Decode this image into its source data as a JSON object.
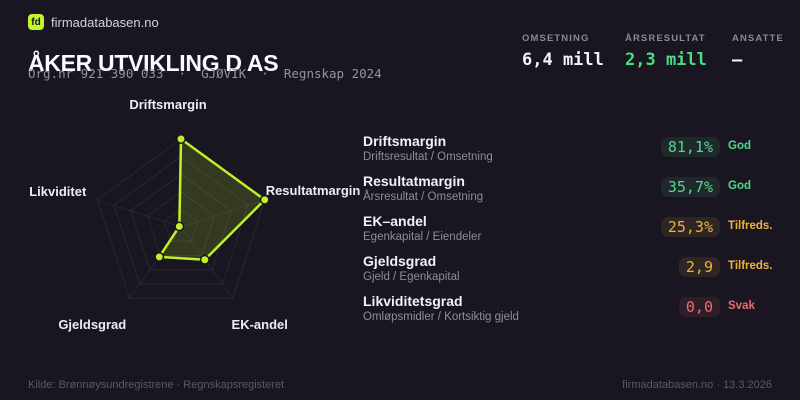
{
  "header": {
    "logo_text": "fd",
    "brand": "firmadatabasen.no",
    "company_name": "ÅKER UTVIKLING D AS",
    "subtitle": "Org.nr 921 390 033  ·  GJØVIK  ·  Regnskap 2024"
  },
  "key_figures": [
    {
      "label": "OMSETNING",
      "value": "6,4 mill",
      "tone": "white"
    },
    {
      "label": "ÅRSRESULTAT",
      "value": "2,3 mill",
      "tone": "green"
    },
    {
      "label": "ANSATTE",
      "value": "–",
      "tone": "white"
    }
  ],
  "chart_data": {
    "type": "radar",
    "grid": "pentagon",
    "categories": [
      "Driftsmargin",
      "Resultatmargin",
      "EK-andel",
      "Gjeldsgrad",
      "Likviditet"
    ],
    "values_normalized": [
      1.0,
      1.0,
      0.46,
      0.42,
      0.02
    ],
    "rings": [
      0.2,
      0.4,
      0.6,
      0.8,
      1.0
    ],
    "range": [
      0,
      1
    ],
    "series_color": "#c0f128"
  },
  "metrics": [
    {
      "title": "Driftsmargin",
      "formula": "Driftsresultat / Omsetning",
      "value": "81,1%",
      "status": "God",
      "tone": "green"
    },
    {
      "title": "Resultatmargin",
      "formula": "Årsresultat / Omsetning",
      "value": "35,7%",
      "status": "God",
      "tone": "green"
    },
    {
      "title": "EK–andel",
      "formula": "Egenkapital / Eiendeler",
      "value": "25,3%",
      "status": "Tilfreds.",
      "tone": "amber"
    },
    {
      "title": "Gjeldsgrad",
      "formula": "Gjeld / Egenkapital",
      "value": "2,9",
      "status": "Tilfreds.",
      "tone": "amber"
    },
    {
      "title": "Likviditetsgrad",
      "formula": "Omløpsmidler / Kortsiktig gjeld",
      "value": "0,0",
      "status": "Svak",
      "tone": "red"
    }
  ],
  "footer": {
    "source": "Kilde: Brønnøysundregistrene · Regnskapsregisteret",
    "site_and_date": "firmadatabasen.no · 13.3.2026"
  },
  "colors": {
    "background": "#1a1621",
    "accent": "#c3f52d",
    "green": "#50d98b",
    "amber": "#eeb33c",
    "red": "#ee6c6c"
  }
}
